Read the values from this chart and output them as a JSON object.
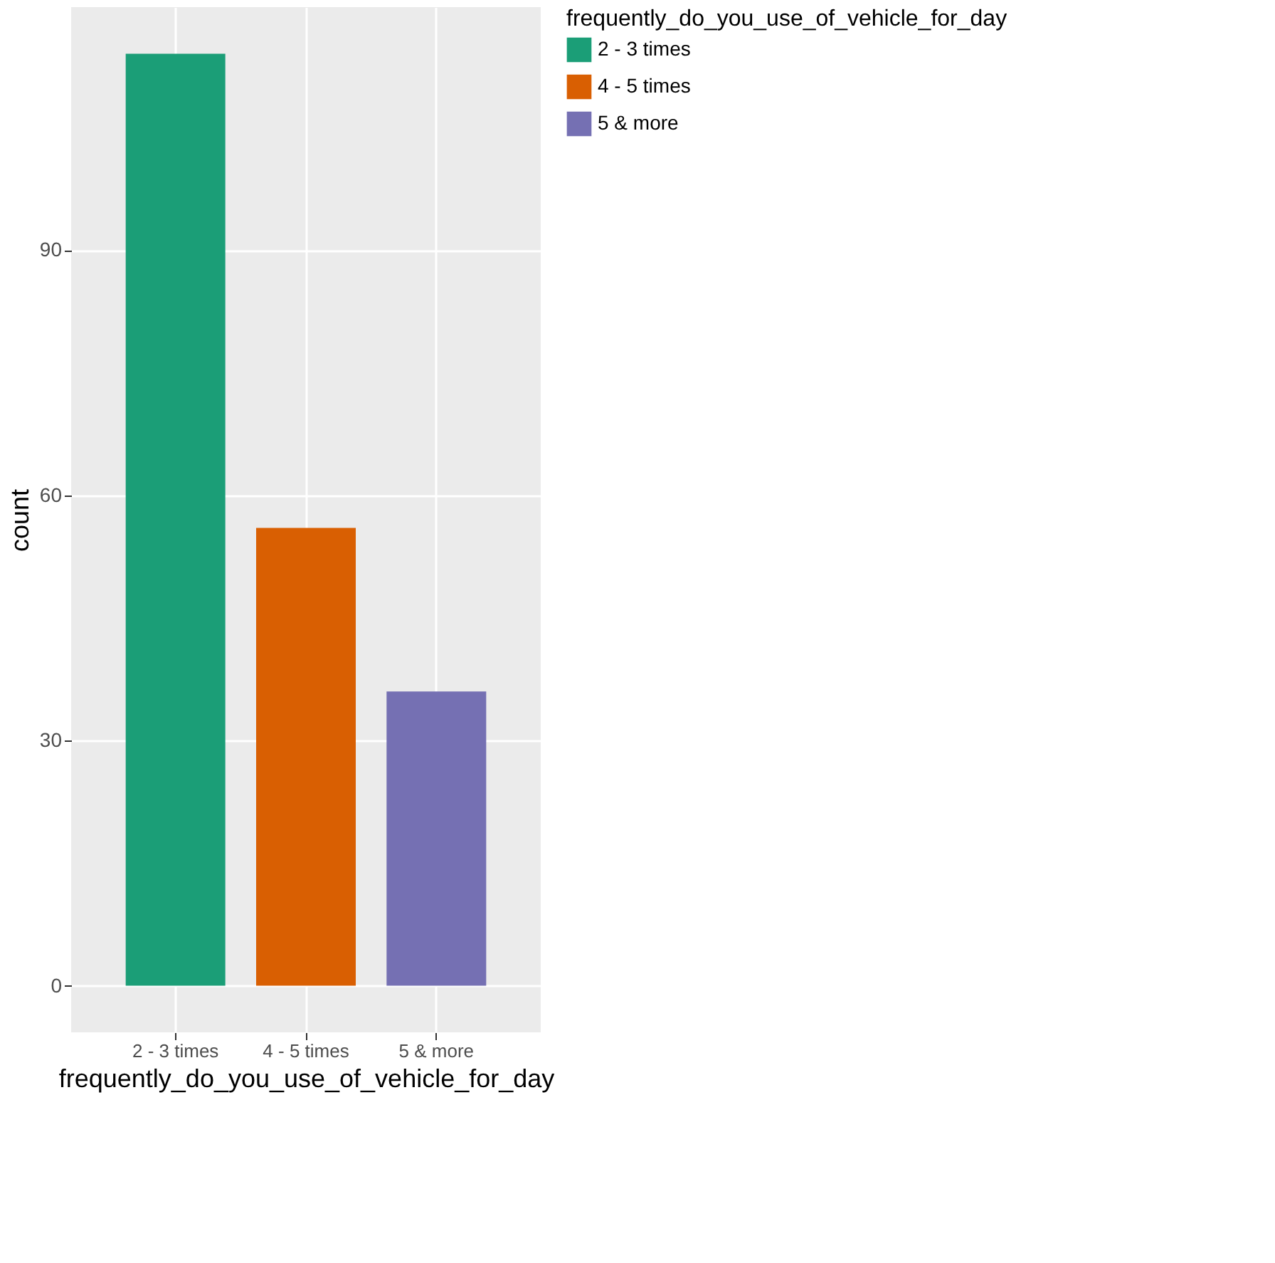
{
  "chart_data": {
    "type": "bar",
    "xlabel": "frequently_do_you_use_of_vehicle_for_day",
    "ylabel": "count",
    "legend_title": "frequently_do_you_use_of_vehicle_for_day",
    "categories": [
      "2 - 3 times",
      "4 - 5  times",
      "5 & more"
    ],
    "series": [
      {
        "name": "2 - 3 times",
        "color": "#1b9e77",
        "values": [
          114,
          null,
          null
        ]
      },
      {
        "name": "4 - 5  times",
        "color": "#d95f02",
        "values": [
          null,
          56,
          null
        ]
      },
      {
        "name": "5 & more",
        "color": "#7570b3",
        "values": [
          null,
          null,
          36
        ]
      }
    ],
    "ylim": [
      -5.7,
      119.7
    ],
    "yticks": [
      0,
      30,
      60,
      90
    ],
    "grid": true,
    "legend": "right"
  }
}
